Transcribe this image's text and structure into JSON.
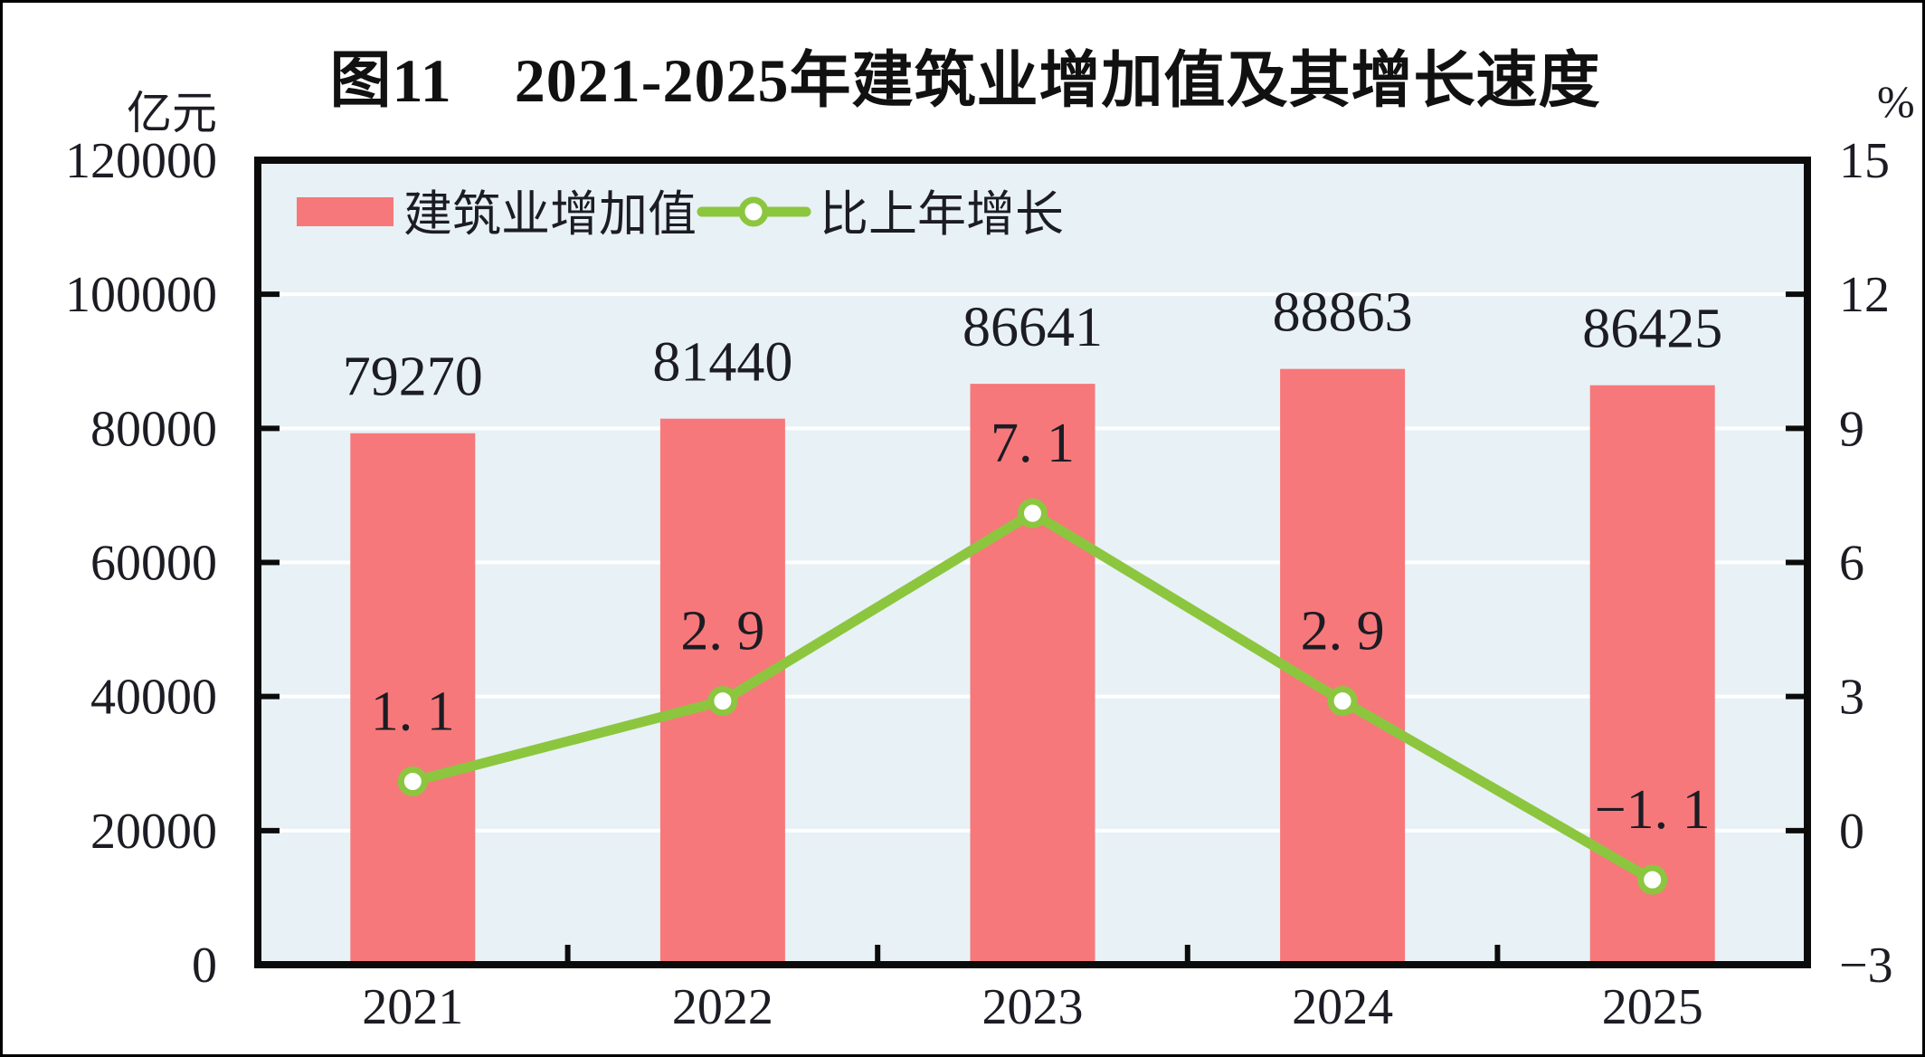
{
  "figure": {
    "title": "图11　2021-2025年建筑业增加值及其增长速度",
    "left_axis_unit": "亿元",
    "right_axis_unit": "%"
  },
  "legend": {
    "items": [
      {
        "label": "建筑业增加值",
        "marker": "bar-swatch",
        "color": "#F7787A"
      },
      {
        "label": "比上年增长",
        "marker": "line-with-circle",
        "color": "#8CC63F"
      }
    ]
  },
  "chart_data": {
    "type": "bar",
    "subtype": "bar-line-combo",
    "title": "图11　2021-2025年建筑业增加值及其增长速度",
    "categories": [
      "2021",
      "2022",
      "2023",
      "2024",
      "2025"
    ],
    "series": [
      {
        "name": "建筑业增加值",
        "type": "bar",
        "axis": "left",
        "unit": "亿元",
        "color": "#F7787A",
        "values": [
          79270,
          81440,
          86641,
          88863,
          86425
        ],
        "value_labels": [
          "79270",
          "81440",
          "86641",
          "88863",
          "86425"
        ]
      },
      {
        "name": "比上年增长",
        "type": "line",
        "axis": "right",
        "unit": "%",
        "color": "#8CC63F",
        "values": [
          1.1,
          2.9,
          7.1,
          2.9,
          -1.1
        ],
        "value_labels": [
          "1. 1",
          "2. 9",
          "7. 1",
          "2. 9",
          "−1. 1"
        ]
      }
    ],
    "left_axis": {
      "unit": "亿元",
      "min": 0,
      "max": 120000,
      "step": 20000,
      "tick_labels": [
        "120000",
        "100000",
        "80000",
        "60000",
        "40000",
        "20000",
        "0"
      ]
    },
    "right_axis": {
      "unit": "%",
      "min": -3,
      "max": 15,
      "step": 3,
      "tick_labels": [
        "15",
        "12",
        "9",
        "6",
        "3",
        "0",
        "−3"
      ]
    },
    "grid": true,
    "legend_position": "top-left-inside",
    "plot_background": "#E8F1F5",
    "gridline_color": "#FFFFFF"
  },
  "colors": {
    "bar": "#F7787A",
    "line": "#8CC63F",
    "marker_fill": "#FFFFFF",
    "plot_bg": "#E8F1F5",
    "grid": "#FFFFFF",
    "frame": "#0B0B0B",
    "text": "#1C1C24",
    "title": "#111111"
  }
}
